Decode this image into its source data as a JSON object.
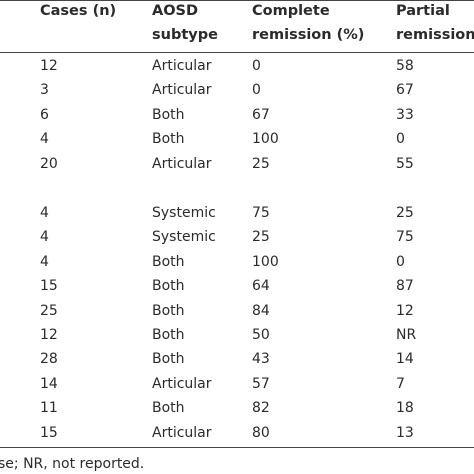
{
  "table": {
    "header": [
      [
        "Cases (n)"
      ],
      [
        "AOSD",
        "subtype"
      ],
      [
        "Complete",
        "remission (%)"
      ],
      [
        "Partial",
        "remission"
      ]
    ],
    "rows": [
      [
        "12",
        "Articular",
        "0",
        "58"
      ],
      [
        "3",
        "Articular",
        "0",
        "67"
      ],
      [
        "6",
        "Both",
        "67",
        "33"
      ],
      [
        "4",
        "Both",
        "100",
        "0"
      ],
      [
        "20",
        "Articular",
        "25",
        "55"
      ],
      [
        "4",
        "Systemic",
        "75",
        "25"
      ],
      [
        "4",
        "Systemic",
        "25",
        "75"
      ],
      [
        "4",
        "Both",
        "100",
        "0"
      ],
      [
        "15",
        "Both",
        "64",
        "87"
      ],
      [
        "25",
        "Both",
        "84",
        "12"
      ],
      [
        "12",
        "Both",
        "50",
        "NR"
      ],
      [
        "28",
        "Both",
        "43",
        "14"
      ],
      [
        "14",
        "Articular",
        "57",
        "7"
      ],
      [
        "11",
        "Both",
        "82",
        "18"
      ],
      [
        "15",
        "Articular",
        "80",
        "13"
      ]
    ],
    "footnote": "se; NR, not reported."
  }
}
